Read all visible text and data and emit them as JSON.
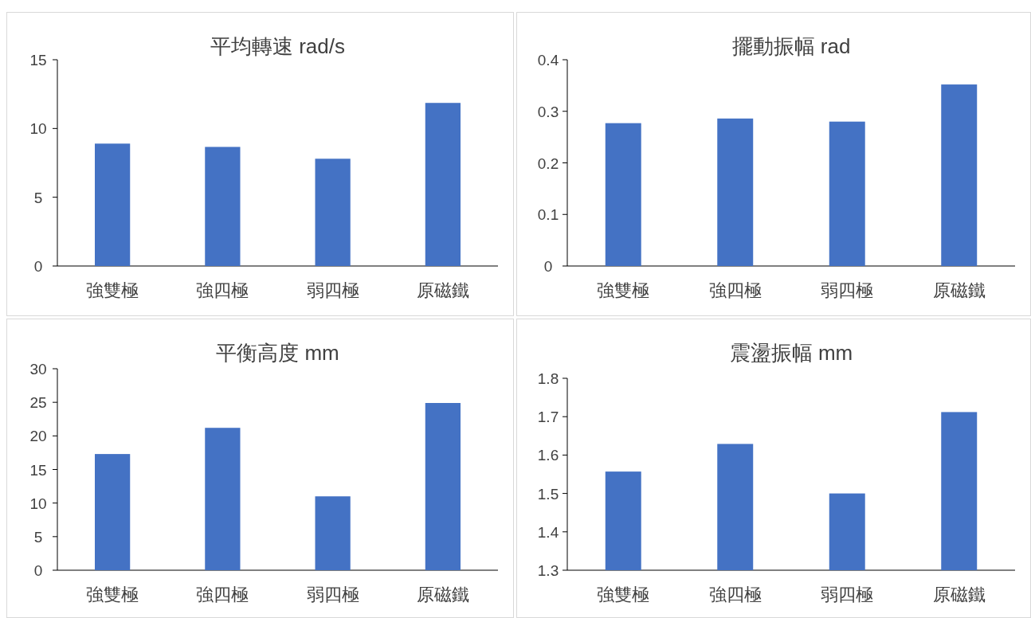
{
  "chart_data": [
    {
      "type": "bar",
      "title": "平均轉速 rad/s",
      "categories": [
        "強雙極",
        "強四極",
        "弱四極",
        "原磁鐵"
      ],
      "values": [
        8.9,
        8.66,
        7.8,
        11.86
      ],
      "color": "#4472c4",
      "ylim": [
        0,
        15
      ],
      "yticks": [
        0,
        5,
        10,
        15
      ],
      "grid": false
    },
    {
      "type": "bar",
      "title": "擺動振幅 rad",
      "categories": [
        "強雙極",
        "強四極",
        "弱四極",
        "原磁鐵"
      ],
      "values": [
        0.277,
        0.286,
        0.28,
        0.352
      ],
      "color": "#4472c4",
      "ylim": [
        0,
        0.4
      ],
      "yticks": [
        0,
        0.1,
        0.2,
        0.3,
        0.4
      ],
      "grid": false
    },
    {
      "type": "bar",
      "title": "平衡高度 mm",
      "categories": [
        "強雙極",
        "強四極",
        "弱四極",
        "原磁鐵"
      ],
      "values": [
        17.3,
        21.2,
        11.0,
        24.9
      ],
      "color": "#4472c4",
      "ylim": [
        0,
        30
      ],
      "yticks": [
        0,
        5,
        10,
        15,
        20,
        25,
        30
      ],
      "grid": false
    },
    {
      "type": "bar",
      "title": "震盪振幅 mm",
      "categories": [
        "強雙極",
        "強四極",
        "弱四極",
        "原磁鐵"
      ],
      "values": [
        1.557,
        1.629,
        1.5,
        1.712
      ],
      "color": "#4472c4",
      "ylim": [
        1.3,
        1.8
      ],
      "yticks": [
        1.3,
        1.4,
        1.5,
        1.6,
        1.7,
        1.8
      ],
      "grid": false
    }
  ]
}
